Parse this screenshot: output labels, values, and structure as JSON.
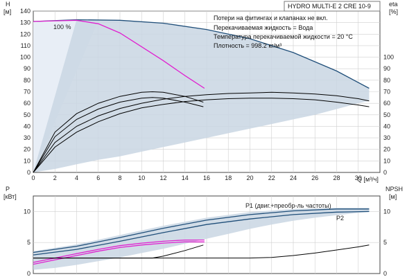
{
  "chart_data": {
    "type": "line",
    "title": "HYDRO MULTI-E 2 CRE 10-9",
    "notes": [
      "Потери на фитингах и клапанах не вкл.",
      "Перекачиваемая жидкость = Вода",
      "Температура перекачиваемой жидкости = 20 °C",
      "Плотность = 998.2 кг/м³"
    ],
    "x_axis": {
      "label": "Q [м³/ч]",
      "range": [
        0,
        32
      ],
      "ticks": [
        0,
        2,
        4,
        6,
        8,
        10,
        12,
        14,
        16,
        18,
        20,
        22,
        24,
        26,
        28,
        30
      ]
    },
    "top_panel": {
      "left_label_lines": [
        "H",
        "[м]"
      ],
      "right_label_lines": [
        "eta",
        "[%]"
      ],
      "left_range": [
        0,
        140
      ],
      "left_ticks": [
        0,
        10,
        20,
        30,
        40,
        50,
        60,
        70,
        80,
        90,
        100,
        110,
        120,
        130,
        140
      ],
      "right_ticks": [
        0,
        10,
        20,
        30,
        40,
        50,
        60,
        70,
        80,
        90,
        100
      ],
      "speed_label": "100 %",
      "series": [
        {
          "role": "head",
          "color": "#1f4e79",
          "x": [
            0,
            4,
            8,
            12,
            16,
            20,
            24,
            28,
            31
          ],
          "y": [
            131,
            132.5,
            132,
            129.5,
            124,
            116,
            104,
            88,
            73
          ]
        },
        {
          "role": "head-one-pump",
          "color": "#e020d0",
          "x": [
            0,
            2,
            4,
            6,
            8,
            10,
            12,
            14,
            15.8
          ],
          "y": [
            131,
            131.5,
            132,
            129,
            121,
            109,
            97,
            84,
            73
          ]
        },
        {
          "role": "eta-system",
          "color": "#000000",
          "x": [
            0,
            2,
            4,
            6,
            8,
            10,
            12,
            14,
            16,
            18,
            20,
            22,
            24,
            26,
            28,
            30,
            31
          ],
          "y": [
            0,
            22,
            35,
            44,
            51,
            56,
            59,
            61.5,
            63,
            64,
            64.5,
            64.5,
            64,
            63,
            61,
            58.5,
            57
          ]
        },
        {
          "role": "eta-system-upper",
          "color": "#000000",
          "x": [
            0,
            2,
            4,
            6,
            8,
            10,
            12,
            14,
            16,
            18,
            20,
            22,
            24,
            26,
            28,
            30,
            31
          ],
          "y": [
            0,
            26,
            40,
            49,
            55.5,
            60,
            63.5,
            66,
            67.5,
            68.5,
            69,
            69.5,
            69,
            68,
            66.5,
            64,
            62
          ]
        },
        {
          "role": "eta-one-pump",
          "color": "#000000",
          "x": [
            0,
            2,
            4,
            6,
            8,
            10,
            11,
            12,
            14,
            15.7
          ],
          "y": [
            0,
            31,
            46,
            55,
            61,
            64.5,
            65,
            64.5,
            61,
            57
          ]
        },
        {
          "role": "eta-one-pump-upper",
          "color": "#000000",
          "x": [
            0,
            2,
            4,
            6,
            8,
            10,
            11,
            12,
            14,
            15.7
          ],
          "y": [
            0,
            35,
            51,
            60,
            66,
            69.5,
            70,
            69.5,
            66,
            61
          ]
        }
      ],
      "region_upper": {
        "x": [
          4,
          8,
          12,
          16,
          20,
          24,
          28,
          31
        ],
        "y": [
          132.5,
          132,
          129.5,
          124,
          116,
          104,
          88,
          73
        ]
      },
      "region_lower": {
        "x": [
          0,
          2,
          4,
          6,
          8,
          10,
          12,
          14,
          16,
          18,
          20,
          22,
          24,
          26,
          28,
          30,
          31
        ],
        "y": [
          0,
          3,
          7,
          11,
          14,
          18,
          22,
          26,
          30,
          34,
          38,
          42,
          46,
          50,
          55,
          60,
          62
        ]
      },
      "light_region": {
        "x": [
          0,
          0,
          1,
          2,
          3,
          4,
          5,
          5.8,
          6
        ],
        "y": [
          0,
          131,
          131.5,
          131.8,
          132,
          132,
          132,
          132,
          132
        ]
      }
    },
    "bottom_panel": {
      "left_label_lines": [
        "P",
        "[кВт]"
      ],
      "right_label_lines": [
        "NPSH",
        "[м]"
      ],
      "left_range": [
        0,
        12.5
      ],
      "left_ticks": [
        0,
        5,
        10
      ],
      "right_ticks": [
        0,
        5,
        10
      ],
      "series_labels": {
        "p1": "P1 (двиг.+преобр-ль частоты)",
        "p2": "P2"
      },
      "series": [
        {
          "role": "p1",
          "color": "#1f4e79",
          "x": [
            0,
            4,
            8,
            12,
            16,
            20,
            24,
            28,
            31
          ],
          "y": [
            3.4,
            4.4,
            5.8,
            7.3,
            8.6,
            9.5,
            10.1,
            10.4,
            10.4
          ]
        },
        {
          "role": "p2",
          "color": "#1f4e79",
          "x": [
            0,
            4,
            8,
            12,
            16,
            20,
            24,
            28,
            31
          ],
          "y": [
            3.0,
            3.9,
            5.2,
            6.6,
            7.9,
            8.8,
            9.5,
            9.9,
            10.0
          ]
        },
        {
          "role": "p1-one-pump",
          "color": "#e020d0",
          "x": [
            0,
            2,
            4,
            6,
            8,
            10,
            12,
            14,
            15.8
          ],
          "y": [
            1.8,
            2.5,
            3.2,
            3.9,
            4.5,
            4.9,
            5.2,
            5.4,
            5.4
          ]
        },
        {
          "role": "p2-one-pump",
          "color": "#e020d0",
          "x": [
            0,
            2,
            4,
            6,
            8,
            10,
            12,
            14,
            15.8
          ],
          "y": [
            1.5,
            2.2,
            2.9,
            3.6,
            4.2,
            4.6,
            4.9,
            5.1,
            5.1
          ]
        },
        {
          "role": "npsh-one-pump",
          "color": "#000000",
          "x": [
            0,
            4,
            8,
            11,
            12,
            14,
            15.7
          ],
          "y": [
            2.5,
            2.5,
            2.5,
            2.5,
            2.8,
            3.7,
            4.6
          ]
        },
        {
          "role": "npsh-system",
          "color": "#000000",
          "x": [
            0,
            4,
            8,
            12,
            16,
            20,
            22,
            24,
            26,
            28,
            30,
            31
          ],
          "y": [
            2.5,
            2.5,
            2.5,
            2.5,
            2.5,
            2.5,
            2.6,
            2.9,
            3.3,
            3.8,
            4.3,
            4.6
          ]
        }
      ],
      "region_upper": {
        "x": [
          0,
          4,
          8,
          12,
          16,
          20,
          24,
          28,
          31
        ],
        "y": [
          3.6,
          4.7,
          6.2,
          7.7,
          9.0,
          9.9,
          10.4,
          10.6,
          10.6
        ]
      },
      "region_lower": {
        "x": [
          0,
          2,
          4,
          6,
          8,
          10,
          12,
          14,
          16,
          18,
          20,
          22,
          24,
          26,
          28,
          30,
          31
        ],
        "y": [
          0.6,
          0.9,
          1.4,
          2.0,
          2.6,
          3.3,
          4.0,
          4.8,
          5.6,
          6.4,
          7.2,
          7.9,
          8.5,
          9.0,
          9.4,
          9.8,
          9.9
        ]
      }
    }
  }
}
